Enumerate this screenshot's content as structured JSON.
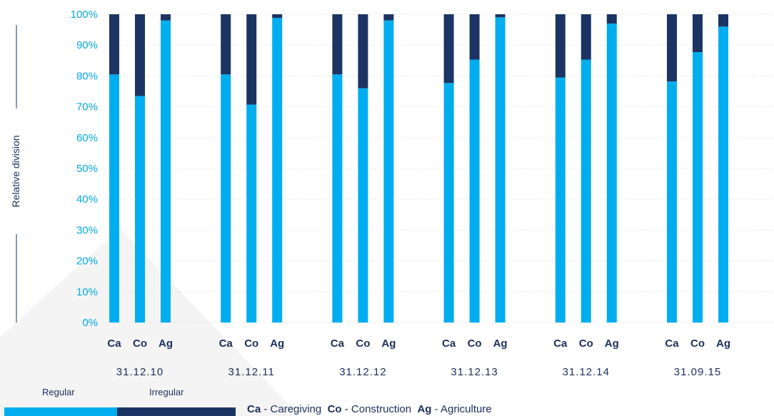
{
  "colors": {
    "regular": "#00aeef",
    "irregular": "#1b3463",
    "text": "#1b2f5b",
    "tick": "#00a8e8"
  },
  "legend": {
    "regular_label": "Regular",
    "irregular_label": "Irregular"
  },
  "abbreviations": [
    {
      "code": "Ca",
      "text": "- Caregiving"
    },
    {
      "code": "Co",
      "text": "- Construction"
    },
    {
      "code": "Ag",
      "text": "- Agriculture"
    }
  ],
  "chart_data": {
    "type": "bar",
    "stacked": true,
    "ylabel": "Relative division",
    "xlabel": "",
    "ylim": [
      0,
      100
    ],
    "yticks": [
      "0%",
      "10%",
      "20%",
      "30%",
      "40%",
      "50%",
      "60%",
      "70%",
      "80%",
      "90%",
      "100%"
    ],
    "grid": true,
    "legend_position": "bottom-left",
    "groups": [
      "31.12.10",
      "31.12.11",
      "31.12.12",
      "31.12.13",
      "31.12.14",
      "31.09.15"
    ],
    "categories": [
      "Ca",
      "Co",
      "Ag"
    ],
    "series": [
      {
        "name": "Regular",
        "values": [
          [
            80.5,
            73.5,
            98
          ],
          [
            80.5,
            70.7,
            98.8
          ],
          [
            80.5,
            76,
            98
          ],
          [
            77.7,
            85.3,
            99
          ],
          [
            79.5,
            85.3,
            97
          ],
          [
            78.2,
            87.7,
            96
          ]
        ]
      },
      {
        "name": "Irregular",
        "values": [
          [
            19.5,
            26.5,
            2
          ],
          [
            19.5,
            29.3,
            1.2
          ],
          [
            19.5,
            24,
            2
          ],
          [
            22.3,
            14.7,
            1
          ],
          [
            20.5,
            14.7,
            3
          ],
          [
            21.8,
            12.3,
            4
          ]
        ]
      }
    ]
  }
}
